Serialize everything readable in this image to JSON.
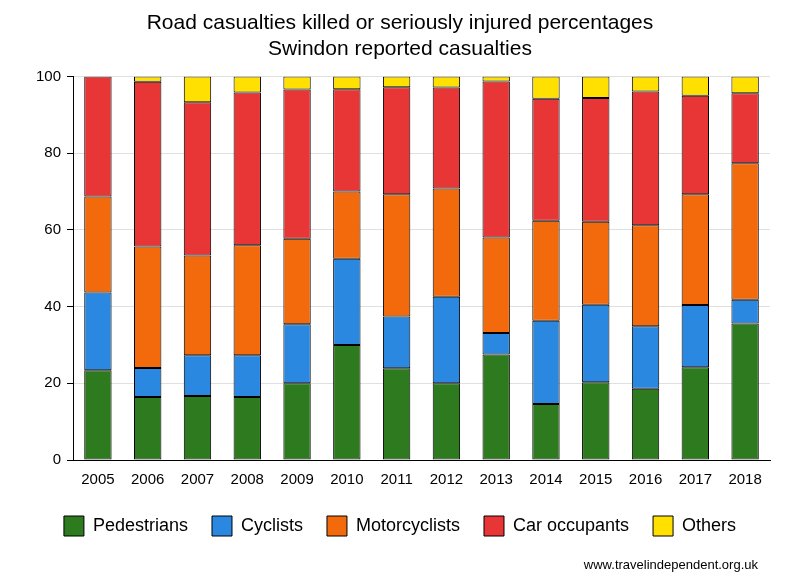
{
  "chart_data": {
    "type": "bar",
    "title": "Road casualties killed or seriously injured percentages",
    "subtitle": "Swindon reported casualties",
    "source": "www.travelindependent.org.uk",
    "categories": [
      "2005",
      "2006",
      "2007",
      "2008",
      "2009",
      "2010",
      "2011",
      "2012",
      "2013",
      "2014",
      "2015",
      "2016",
      "2017",
      "2018"
    ],
    "series": [
      {
        "name": "Pedestrians",
        "color": "#2e7a1f",
        "values": [
          23.4,
          16.4,
          16.7,
          16.4,
          20,
          30,
          23.9,
          20,
          27.5,
          14.6,
          20.3,
          18.6,
          24.2,
          35.6
        ]
      },
      {
        "name": "Cyclists",
        "color": "#2b88e0",
        "values": [
          20.3,
          7.6,
          10.6,
          10.9,
          15.4,
          22.5,
          13.5,
          22.6,
          5.6,
          21.7,
          20.2,
          16.3,
          16.2,
          6.2
        ]
      },
      {
        "name": "Motorcyclists",
        "color": "#f26a0c",
        "values": [
          25,
          31.7,
          26,
          28.7,
          22.3,
          17.5,
          31.9,
          28.2,
          24.9,
          26.1,
          21.6,
          26.3,
          28.9,
          35.6
        ]
      },
      {
        "name": "Car occupants",
        "color": "#e83535",
        "values": [
          31.3,
          42.9,
          40,
          39.8,
          38.9,
          26.7,
          27.9,
          26.3,
          40.7,
          31.8,
          32.3,
          34.9,
          25.7,
          18.2
        ]
      },
      {
        "name": "Others",
        "color": "#ffe000",
        "values": [
          0,
          1.4,
          6.7,
          4.2,
          3.4,
          3.3,
          2.8,
          2.9,
          1.3,
          5.8,
          5.6,
          3.9,
          5,
          4.4
        ]
      }
    ],
    "ylim": [
      0,
      100
    ],
    "yticks": [
      0,
      20,
      40,
      60,
      80,
      100
    ],
    "stacked": true,
    "grid": true,
    "legend": "bottom"
  }
}
